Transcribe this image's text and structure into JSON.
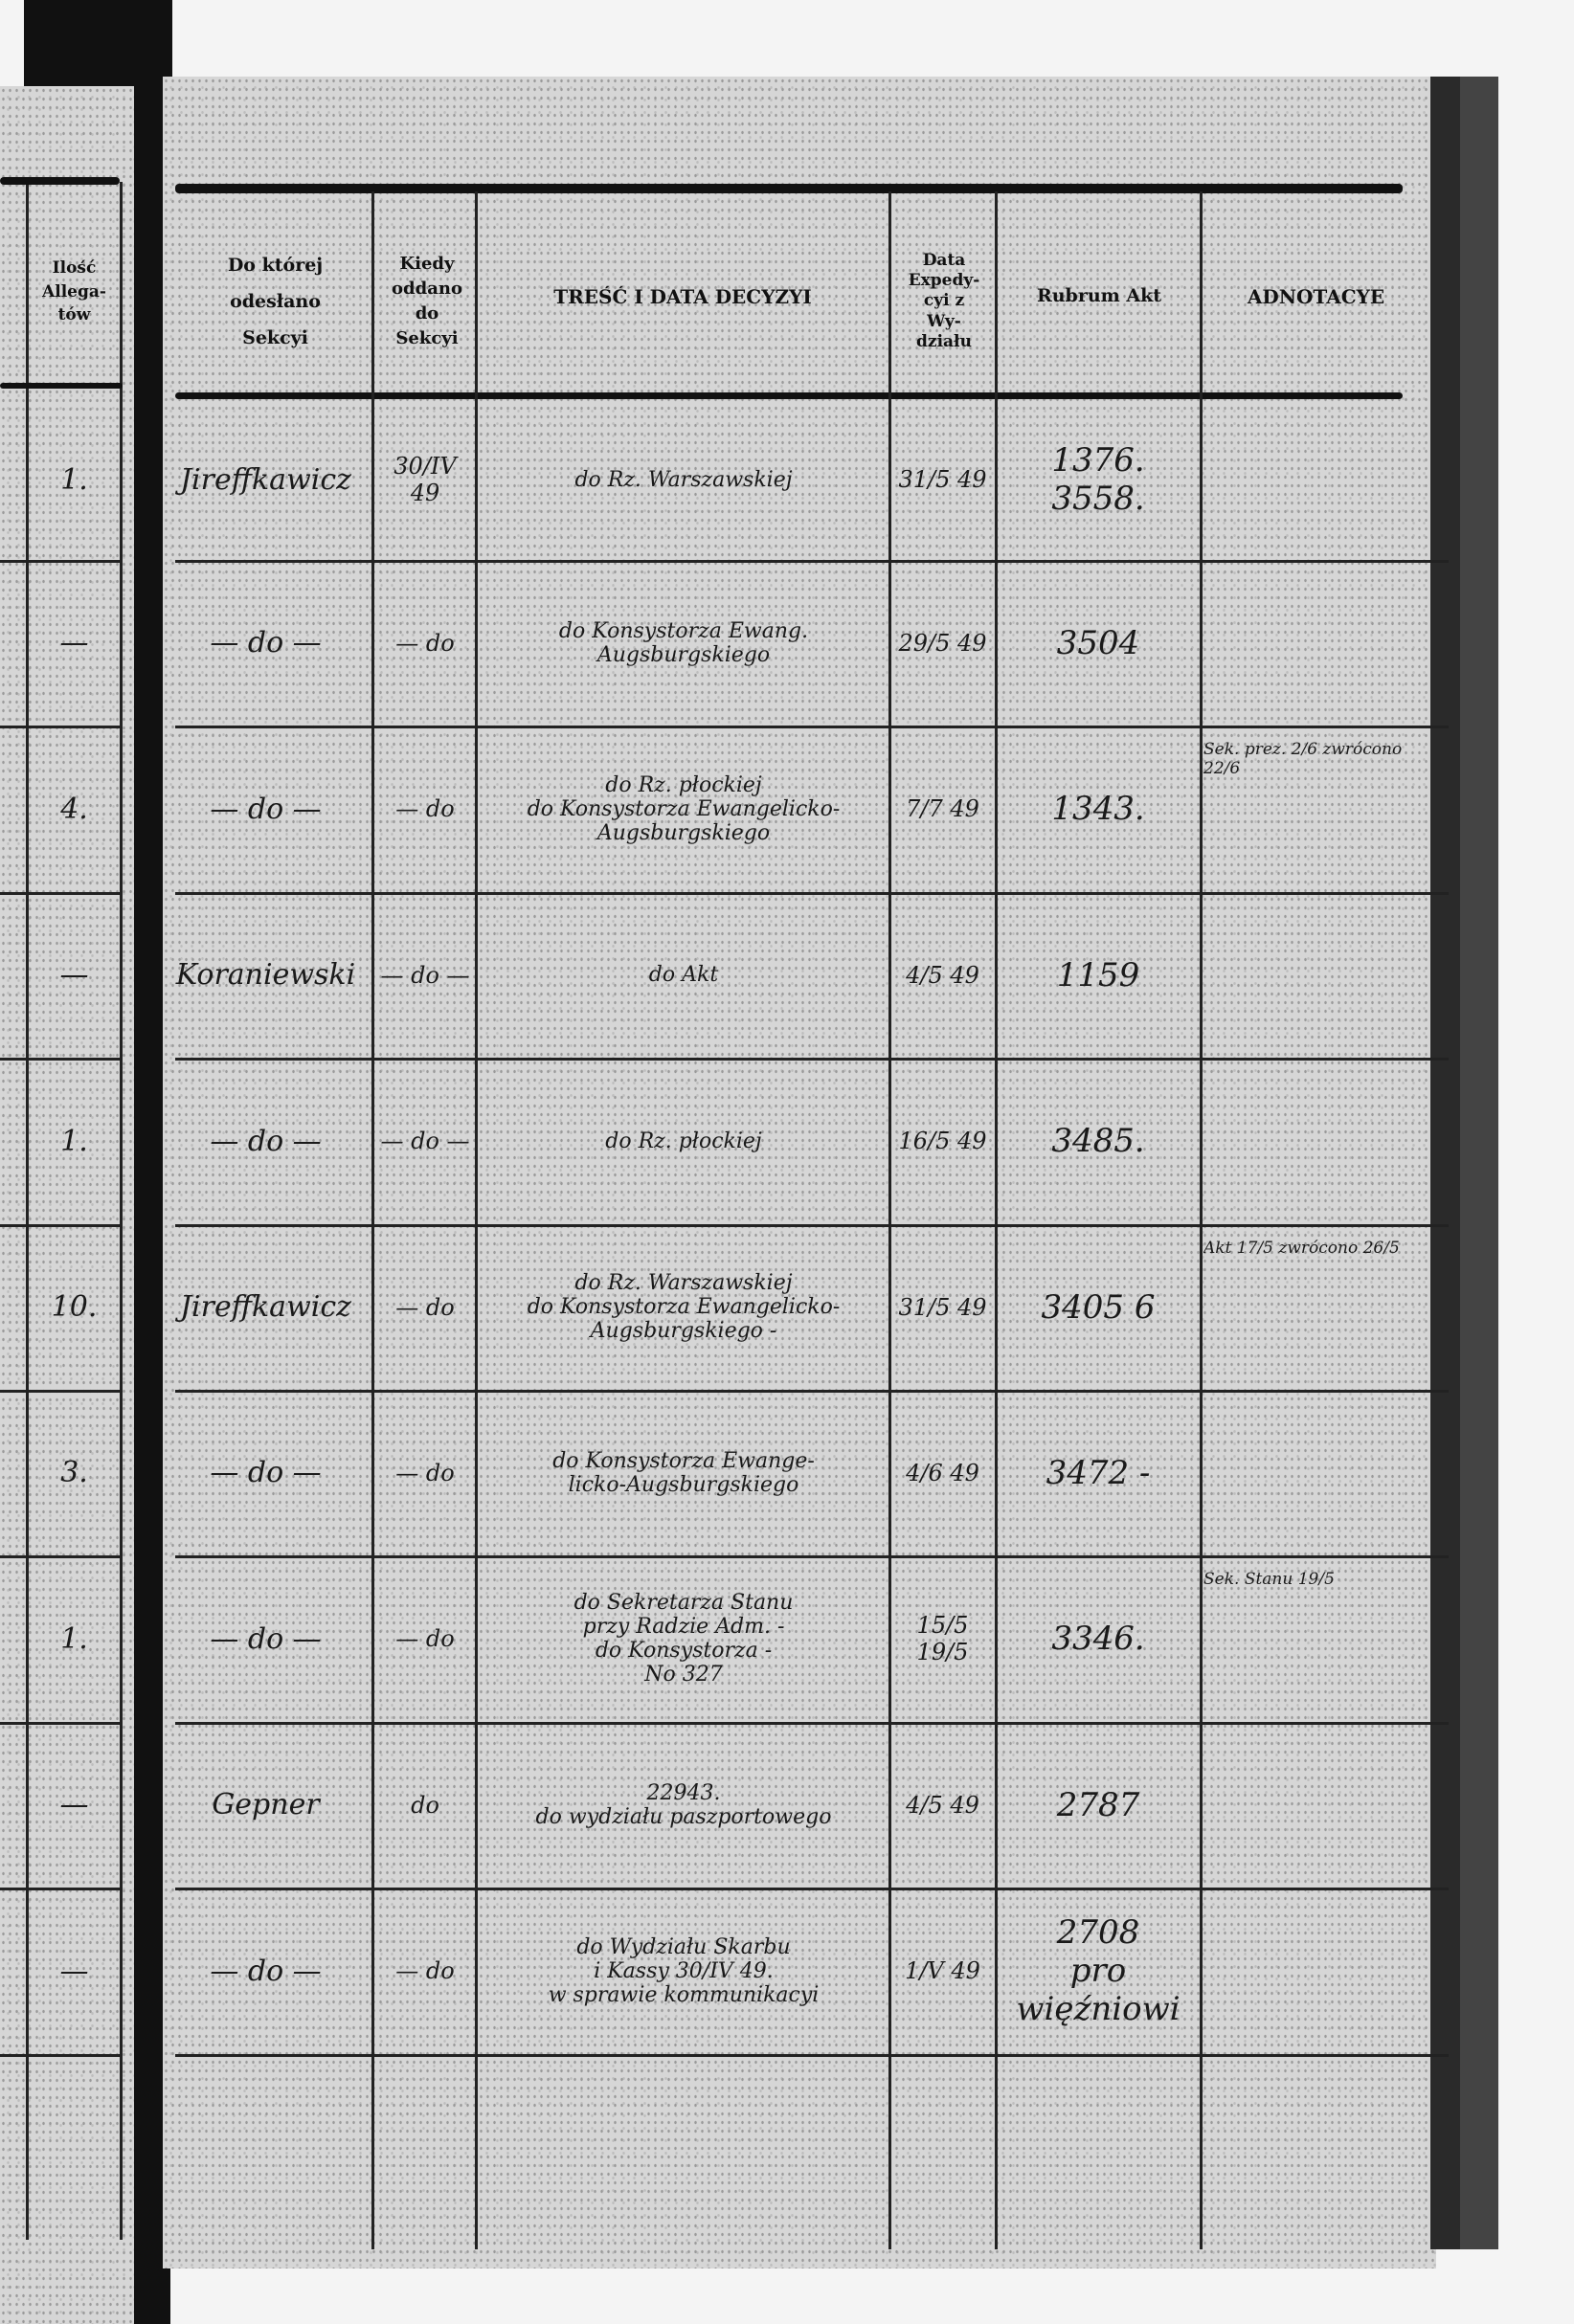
{
  "left_page": {
    "header": "Ilość Allega-tów",
    "counts": [
      "1.",
      "—",
      "4.",
      "—",
      "1.",
      "10.",
      "3.",
      "1.",
      "—",
      "—"
    ]
  },
  "headers": {
    "do_ktorej": "Do której odesłano Sekcyi",
    "kiedy": "Kiedy oddano do Sekcyi",
    "tresc": "TREŚĆ I DATA DECYZYI",
    "data_exp": "Data Expedy-cyi z Wy-działu",
    "rubrum": "Rubrum Akt",
    "adnotacye": "ADNOTACYE"
  },
  "rows": [
    {
      "sekcja": "Jireffkawicz",
      "kiedy": "30/IV 49",
      "tresc": [
        "do Rz. Warszawskiej"
      ],
      "data": "31/5 49",
      "rubrum": [
        "1376.",
        "3558."
      ],
      "adn": ""
    },
    {
      "sekcja": "— do —",
      "kiedy": "— do",
      "tresc": [
        "do Konsystorza Ewang.",
        "Augsburgskiego"
      ],
      "data": "29/5 49",
      "rubrum": [
        "3504"
      ],
      "adn": ""
    },
    {
      "sekcja": "— do —",
      "kiedy": "— do",
      "tresc": [
        "do Rz. płockiej",
        "do Konsystorza Ewangelicko-Augsburgskiego"
      ],
      "data": "7/7 49",
      "rubrum": [
        "1343."
      ],
      "adn": "Sek. prez. 2/6 zwrócono 22/6"
    },
    {
      "sekcja": "Koraniewski",
      "kiedy": "— do —",
      "tresc": [
        "do Akt"
      ],
      "data": "4/5 49",
      "rubrum": [
        "1159"
      ],
      "adn": ""
    },
    {
      "sekcja": "— do —",
      "kiedy": "— do —",
      "tresc": [
        "do Rz. płockiej"
      ],
      "data": "16/5 49",
      "rubrum": [
        "3485."
      ],
      "adn": ""
    },
    {
      "sekcja": "Jireffkawicz",
      "kiedy": "— do",
      "tresc": [
        "do Rz. Warszawskiej",
        "do Konsystorza Ewangelicko-",
        "Augsburgskiego -"
      ],
      "data": "31/5 49",
      "rubrum": [
        "3405 6"
      ],
      "adn": "Akt 17/5 zwrócono 26/5"
    },
    {
      "sekcja": "— do —",
      "kiedy": "— do",
      "tresc": [
        "do Konsystorza Ewange-",
        "licko-Augsburgskiego"
      ],
      "data": "4/6 49",
      "rubrum": [
        "3472 -"
      ],
      "adn": ""
    },
    {
      "sekcja": "— do —",
      "kiedy": "— do",
      "tresc": [
        "do Sekretarza Stanu",
        "przy Radzie Adm. -",
        "do Konsystorza -",
        "No 327"
      ],
      "data": "15/5 19/5",
      "rubrum": [
        "3346."
      ],
      "adn": "Sek. Stanu 19/5"
    },
    {
      "sekcja": "Gepner",
      "kiedy": "do",
      "tresc": [
        "22943.",
        "do wydziału paszportowego"
      ],
      "data": "4/5 49",
      "rubrum": [
        "2787"
      ],
      "adn": ""
    },
    {
      "sekcja": "— do —",
      "kiedy": "— do",
      "tresc": [
        "do Wydziału Skarbu",
        "i Kassy 30/IV 49.",
        "w sprawie kommunikacyi"
      ],
      "data": "1/V 49",
      "rubrum": [
        "2708",
        "pro więźniowi"
      ],
      "adn": ""
    }
  ]
}
